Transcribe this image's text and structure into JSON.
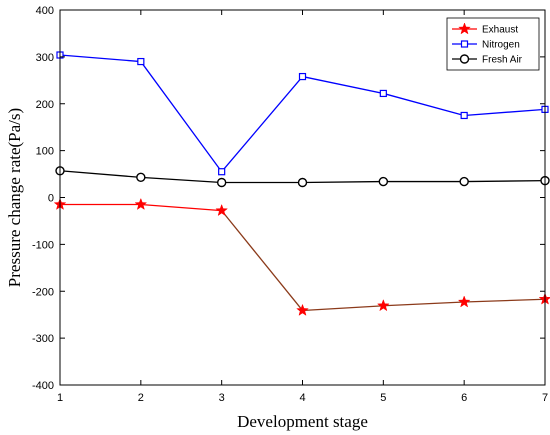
{
  "chart_data": {
    "type": "line",
    "xlabel": "Development stage",
    "ylabel": "Pressure change rate(Pa/s)",
    "xlim": [
      1,
      7
    ],
    "ylim": [
      -400,
      400
    ],
    "x_ticks": [
      1,
      2,
      3,
      4,
      5,
      6,
      7
    ],
    "y_ticks": [
      -400,
      -300,
      -200,
      -100,
      0,
      100,
      200,
      300,
      400
    ],
    "grid": false,
    "legend_position": "top-right",
    "x": [
      1,
      2,
      3,
      4,
      5,
      6,
      7
    ],
    "series": [
      {
        "name": "Exhaust",
        "marker": "star",
        "color": "#ff0000",
        "line_colors": [
          "#ff0000",
          "#ff0000",
          "#8b3a1a",
          "#8b3a1a",
          "#8b3a1a",
          "#8b3a1a"
        ],
        "values": [
          -15,
          -15,
          -28,
          -241,
          -231,
          -223,
          -217
        ]
      },
      {
        "name": "Nitrogen",
        "marker": "square",
        "color": "#0000ff",
        "values": [
          304,
          290,
          55,
          258,
          222,
          175,
          188
        ]
      },
      {
        "name": "Fresh Air",
        "marker": "circle",
        "color": "#000000",
        "values": [
          57,
          43,
          32,
          32,
          34,
          34,
          36
        ]
      }
    ]
  }
}
